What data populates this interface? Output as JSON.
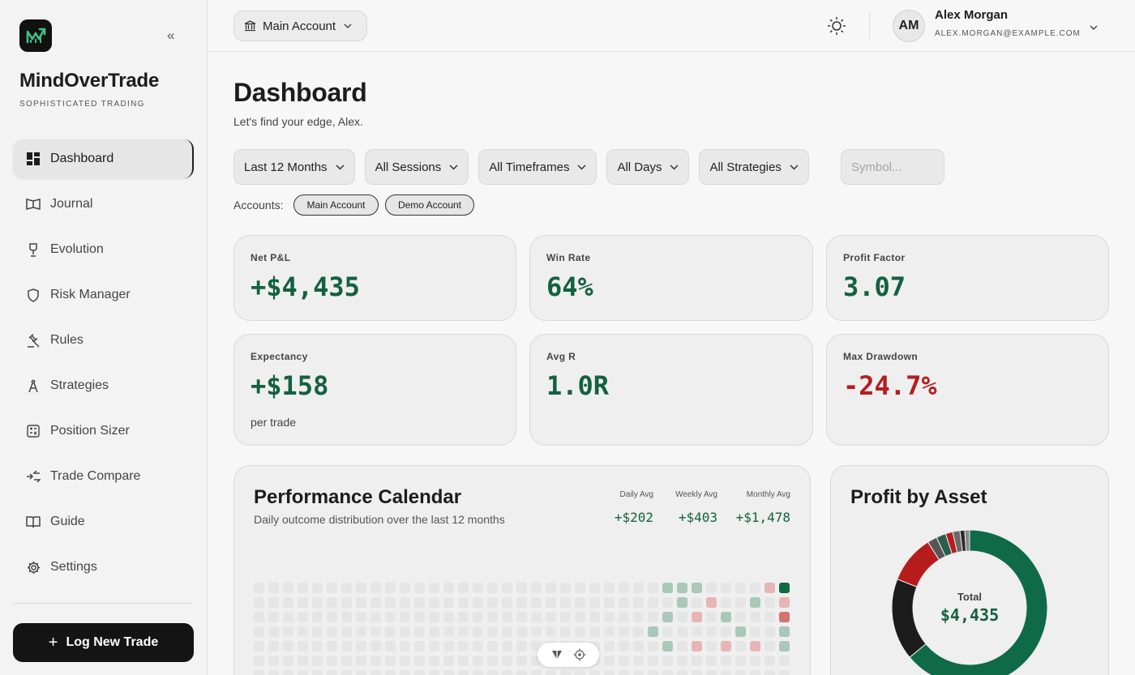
{
  "app": {
    "name": "MindOverTrade",
    "tagline": "SOPHISTICATED TRADING"
  },
  "sidebar": {
    "items": [
      {
        "label": "Dashboard",
        "icon": "dashboard-icon",
        "active": true
      },
      {
        "label": "Journal",
        "icon": "journal-icon"
      },
      {
        "label": "Evolution",
        "icon": "trophy-icon"
      },
      {
        "label": "Risk Manager",
        "icon": "shield-icon"
      },
      {
        "label": "Rules",
        "icon": "gavel-icon"
      },
      {
        "label": "Strategies",
        "icon": "compass-icon"
      },
      {
        "label": "Position Sizer",
        "icon": "calculator-icon"
      },
      {
        "label": "Trade Compare",
        "icon": "compare-arrows-icon"
      },
      {
        "label": "Guide",
        "icon": "book-icon"
      },
      {
        "label": "Settings",
        "icon": "gear-icon"
      }
    ],
    "cta": "Log New Trade"
  },
  "topbar": {
    "account_selector": "Main Account",
    "user": {
      "initials": "AM",
      "name": "Alex Morgan",
      "email": "ALEX.MORGAN@EXAMPLE.COM"
    }
  },
  "page": {
    "title": "Dashboard",
    "subtitle": "Let's find your edge, Alex."
  },
  "filters": {
    "period": "Last 12 Months",
    "sessions": "All Sessions",
    "timeframes": "All Timeframes",
    "days": "All Days",
    "strategies": "All Strategies",
    "symbol_placeholder": "Symbol...",
    "accounts_label": "Accounts:",
    "accounts": [
      "Main Account",
      "Demo Account"
    ]
  },
  "metrics": {
    "net_pnl": {
      "label": "Net P&L",
      "value": "+$4,435"
    },
    "win_rate": {
      "label": "Win Rate",
      "value": "64%"
    },
    "profit_factor": {
      "label": "Profit Factor",
      "value": "3.07"
    },
    "expectancy": {
      "label": "Expectancy",
      "value": "+$158",
      "sub": "per trade"
    },
    "avg_r": {
      "label": "Avg R",
      "value": "1.0R"
    },
    "max_drawdown": {
      "label": "Max Drawdown",
      "value": "-24.7%"
    }
  },
  "calendar": {
    "title": "Performance Calendar",
    "subtitle": "Daily outcome distribution over the last 12 months",
    "daily_avg": {
      "label": "Daily Avg",
      "value": "+$202"
    },
    "weekly_avg": {
      "label": "Weekly Avg",
      "value": "+$403"
    },
    "monthly_avg": {
      "label": "Monthly Avg",
      "value": "+$1,478"
    },
    "colors": {
      "empty": "#e5e5e5",
      "light_green": "#a9c8b8",
      "dark_green": "#0e6b45",
      "light_red": "#e7b5b5",
      "red": "#d57272"
    },
    "marked_days": [
      {
        "col": 28,
        "row": 0,
        "tone": "light_green"
      },
      {
        "col": 29,
        "row": 0,
        "tone": "light_green"
      },
      {
        "col": 30,
        "row": 0,
        "tone": "light_green"
      },
      {
        "col": 35,
        "row": 0,
        "tone": "light_red"
      },
      {
        "col": 36,
        "row": 0,
        "tone": "dark_green"
      },
      {
        "col": 29,
        "row": 1,
        "tone": "light_green"
      },
      {
        "col": 31,
        "row": 1,
        "tone": "light_red"
      },
      {
        "col": 34,
        "row": 1,
        "tone": "light_green"
      },
      {
        "col": 36,
        "row": 1,
        "tone": "light_red"
      },
      {
        "col": 28,
        "row": 2,
        "tone": "light_green"
      },
      {
        "col": 30,
        "row": 2,
        "tone": "light_red"
      },
      {
        "col": 32,
        "row": 2,
        "tone": "light_green"
      },
      {
        "col": 36,
        "row": 2,
        "tone": "red"
      },
      {
        "col": 27,
        "row": 3,
        "tone": "light_green"
      },
      {
        "col": 33,
        "row": 3,
        "tone": "light_green"
      },
      {
        "col": 36,
        "row": 3,
        "tone": "light_green"
      },
      {
        "col": 28,
        "row": 4,
        "tone": "light_green"
      },
      {
        "col": 30,
        "row": 4,
        "tone": "light_red"
      },
      {
        "col": 32,
        "row": 4,
        "tone": "light_red"
      },
      {
        "col": 34,
        "row": 4,
        "tone": "light_red"
      },
      {
        "col": 36,
        "row": 4,
        "tone": "light_green"
      }
    ]
  },
  "assets": {
    "title": "Profit by Asset",
    "total_label": "Total",
    "total": "$4,435",
    "chart_data": {
      "type": "pie",
      "values": [
        64,
        17,
        10,
        2,
        2,
        1.5,
        1.5,
        1,
        1
      ],
      "colors": [
        "#0f6a47",
        "#1c1c1c",
        "#b71c1c",
        "#555555",
        "#2c5c4c",
        "#b71c1c",
        "#6a6a6a",
        "#2a2a2a",
        "#888888"
      ]
    }
  }
}
